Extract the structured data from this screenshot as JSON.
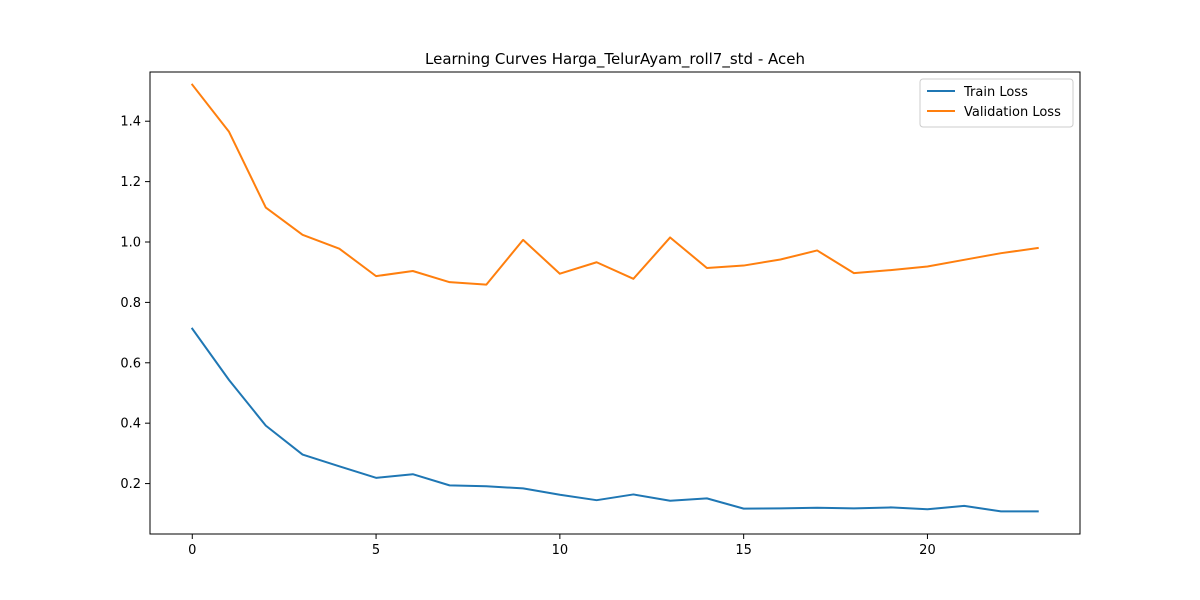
{
  "chart_data": {
    "type": "line",
    "title": "Learning Curves Harga_TelurAyam_roll7_std - Aceh",
    "xlabel": "",
    "ylabel": "",
    "x": [
      0,
      1,
      2,
      3,
      4,
      5,
      6,
      7,
      8,
      9,
      10,
      11,
      12,
      13,
      14,
      15,
      16,
      17,
      18,
      19,
      20,
      21,
      22,
      23
    ],
    "xlim": [
      -1.15,
      24.15
    ],
    "ylim": [
      0.033,
      1.563
    ],
    "x_ticks": [
      0,
      5,
      10,
      15,
      20
    ],
    "y_ticks": [
      0.2,
      0.4,
      0.6,
      0.8,
      1.0,
      1.2,
      1.4
    ],
    "x_tick_labels": [
      "0",
      "5",
      "10",
      "15",
      "20"
    ],
    "y_tick_labels": [
      "0.2",
      "0.4",
      "0.6",
      "0.8",
      "1.0",
      "1.2",
      "1.4"
    ],
    "grid": false,
    "legend_position": "top-right",
    "series": [
      {
        "name": "Train Loss",
        "color": "#1f77b4",
        "values": [
          0.713,
          0.543,
          0.392,
          0.296,
          0.257,
          0.219,
          0.231,
          0.194,
          0.191,
          0.184,
          0.163,
          0.145,
          0.164,
          0.143,
          0.151,
          0.117,
          0.118,
          0.12,
          0.118,
          0.121,
          0.115,
          0.126,
          0.108,
          0.108
        ]
      },
      {
        "name": "Validation Loss",
        "color": "#ff7f0e",
        "values": [
          1.521,
          1.365,
          1.114,
          1.024,
          0.978,
          0.887,
          0.904,
          0.867,
          0.859,
          1.007,
          0.895,
          0.933,
          0.878,
          1.015,
          0.914,
          0.922,
          0.942,
          0.972,
          0.897,
          0.907,
          0.919,
          0.941,
          0.963,
          0.98
        ]
      }
    ]
  }
}
